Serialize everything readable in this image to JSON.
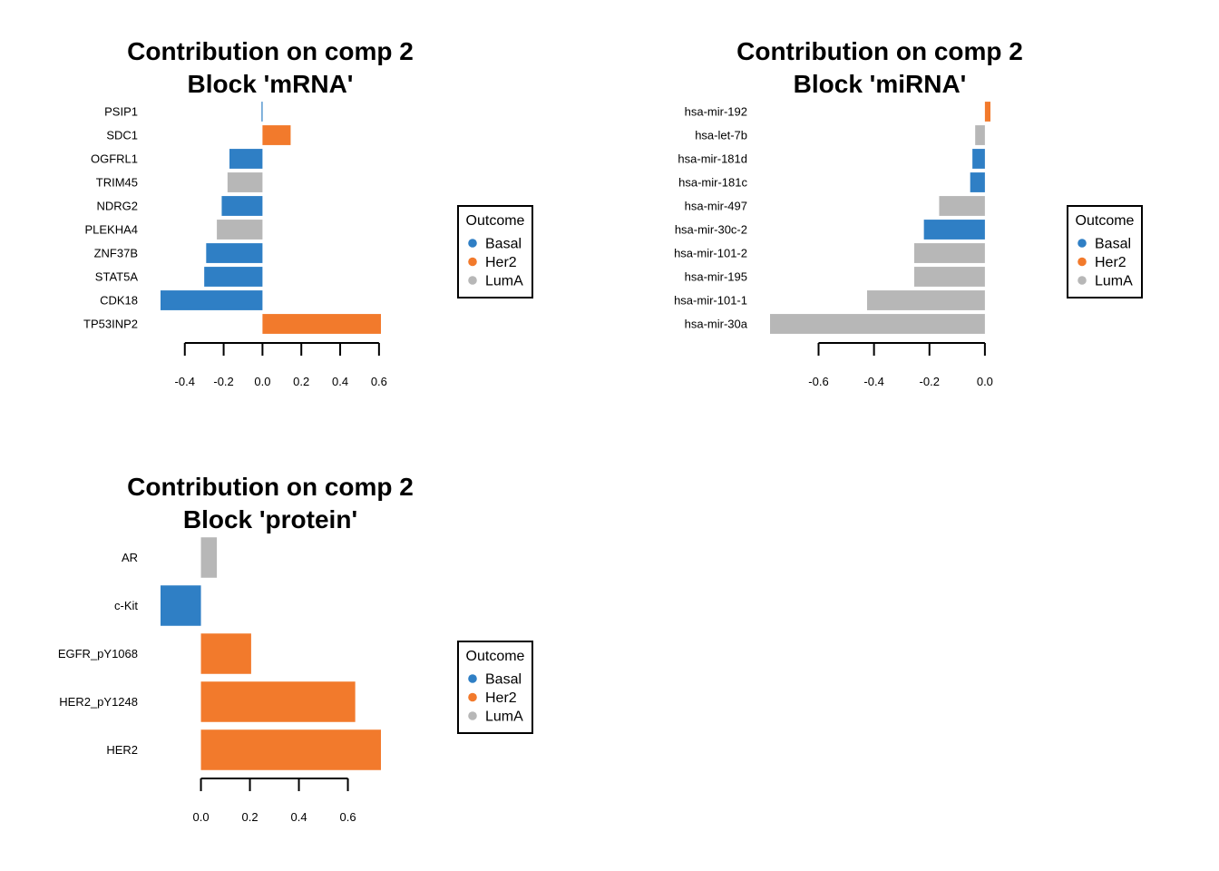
{
  "chart_data": [
    {
      "type": "bar",
      "orientation": "horizontal",
      "title_lines": [
        "Contribution on comp 2",
        "Block 'mRNA'"
      ],
      "categories": [
        "PSIP1",
        "SDC1",
        "OGFRL1",
        "TRIM45",
        "NDRG2",
        "PLEKHA4",
        "ZNF37B",
        "STAT5A",
        "CDK18",
        "TP53INP2"
      ],
      "values": [
        -0.005,
        0.145,
        -0.17,
        -0.18,
        -0.21,
        -0.235,
        -0.29,
        -0.3,
        -0.525,
        0.61
      ],
      "groups": [
        "Basal",
        "Her2",
        "Basal",
        "LumA",
        "Basal",
        "LumA",
        "Basal",
        "Basal",
        "Basal",
        "Her2"
      ],
      "xticks": [
        -0.4,
        -0.2,
        0.0,
        0.2,
        0.4,
        0.6
      ],
      "xlim": [
        -0.525,
        0.61
      ],
      "xlabel": "",
      "ylabel": "",
      "legend": {
        "title": "Outcome",
        "entries": [
          "Basal",
          "Her2",
          "LumA"
        ],
        "placement": "right"
      }
    },
    {
      "type": "bar",
      "orientation": "horizontal",
      "title_lines": [
        "Contribution on comp 2",
        "Block 'miRNA'"
      ],
      "categories": [
        "hsa-mir-192",
        "hsa-let-7b",
        "hsa-mir-181d",
        "hsa-mir-181c",
        "hsa-mir-497",
        "hsa-mir-30c-2",
        "hsa-mir-101-2",
        "hsa-mir-195",
        "hsa-mir-101-1",
        "hsa-mir-30a"
      ],
      "values": [
        0.02,
        -0.035,
        -0.045,
        -0.053,
        -0.165,
        -0.22,
        -0.255,
        -0.255,
        -0.425,
        -0.775
      ],
      "groups": [
        "Her2",
        "LumA",
        "Basal",
        "Basal",
        "LumA",
        "Basal",
        "LumA",
        "LumA",
        "LumA",
        "LumA"
      ],
      "xticks": [
        -0.6,
        -0.4,
        -0.2,
        0.0
      ],
      "xlim": [
        -0.775,
        0.02
      ],
      "xlabel": "",
      "ylabel": "",
      "legend": {
        "title": "Outcome",
        "entries": [
          "Basal",
          "Her2",
          "LumA"
        ],
        "placement": "right"
      }
    },
    {
      "type": "bar",
      "orientation": "horizontal",
      "title_lines": [
        "Contribution on comp 2",
        "Block 'protein'"
      ],
      "categories": [
        "AR",
        "c-Kit",
        "EGFR_pY1068",
        "HER2_pY1248",
        "HER2"
      ],
      "values": [
        0.065,
        -0.165,
        0.205,
        0.63,
        0.735
      ],
      "groups": [
        "LumA",
        "Basal",
        "Her2",
        "Her2",
        "Her2"
      ],
      "xticks": [
        0.0,
        0.2,
        0.4,
        0.6
      ],
      "xlim": [
        -0.165,
        0.735
      ],
      "xlabel": "",
      "ylabel": "",
      "legend": {
        "title": "Outcome",
        "entries": [
          "Basal",
          "Her2",
          "LumA"
        ],
        "placement": "right"
      }
    }
  ],
  "colors": {
    "Basal": "#2F7FC5",
    "Her2": "#F27A2C",
    "LumA": "#B7B7B7"
  }
}
